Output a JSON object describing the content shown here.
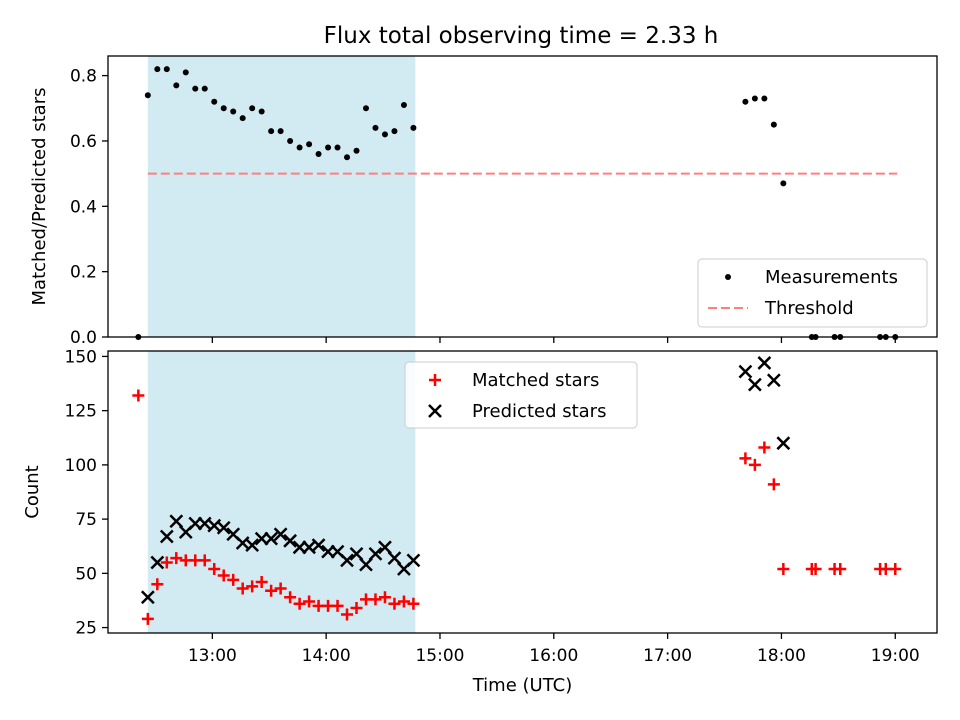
{
  "figure": {
    "title": "Flux total observing time = 2.33 h",
    "highlight_color": "#add8e6"
  },
  "chart_data": [
    {
      "type": "scatter",
      "ylabel": "Matched/Predicted stars",
      "xlim": [
        "12:05",
        "19:22"
      ],
      "ylim": [
        0,
        0.86
      ],
      "yticks": [
        0.0,
        0.2,
        0.4,
        0.6,
        0.8
      ],
      "ytick_labels": [
        "0.0",
        "0.2",
        "0.4",
        "0.6",
        "0.8"
      ],
      "xtick_labels_hidden": true,
      "grid": false,
      "legend": "lower-right",
      "shaded_span": [
        "12:26",
        "14:47"
      ],
      "series": [
        {
          "name": "Measurements",
          "marker": "dot",
          "color": "#000000",
          "points": [
            [
              "12:21",
              0.0
            ],
            [
              "12:26",
              0.74
            ],
            [
              "12:31",
              0.82
            ],
            [
              "12:36",
              0.82
            ],
            [
              "12:41",
              0.77
            ],
            [
              "12:46",
              0.81
            ],
            [
              "12:51",
              0.76
            ],
            [
              "12:56",
              0.76
            ],
            [
              "13:01",
              0.72
            ],
            [
              "13:06",
              0.7
            ],
            [
              "13:11",
              0.69
            ],
            [
              "13:16",
              0.67
            ],
            [
              "13:21",
              0.7
            ],
            [
              "13:26",
              0.69
            ],
            [
              "13:31",
              0.63
            ],
            [
              "13:36",
              0.63
            ],
            [
              "13:41",
              0.6
            ],
            [
              "13:46",
              0.58
            ],
            [
              "13:51",
              0.59
            ],
            [
              "13:56",
              0.56
            ],
            [
              "14:01",
              0.58
            ],
            [
              "14:06",
              0.58
            ],
            [
              "14:11",
              0.55
            ],
            [
              "14:16",
              0.57
            ],
            [
              "14:21",
              0.7
            ],
            [
              "14:26",
              0.64
            ],
            [
              "14:31",
              0.62
            ],
            [
              "14:36",
              0.63
            ],
            [
              "14:41",
              0.71
            ],
            [
              "14:46",
              0.64
            ],
            [
              "17:41",
              0.72
            ],
            [
              "17:46",
              0.73
            ],
            [
              "17:51",
              0.73
            ],
            [
              "17:56",
              0.65
            ],
            [
              "18:01",
              0.47
            ],
            [
              "18:16",
              0.0
            ],
            [
              "18:18",
              0.0
            ],
            [
              "18:28",
              0.0
            ],
            [
              "18:31",
              0.0
            ],
            [
              "18:52",
              0.0
            ],
            [
              "18:55",
              0.0
            ],
            [
              "19:00",
              0.0
            ]
          ]
        },
        {
          "name": "Threshold",
          "marker": "dashed-line",
          "color": "#ff7f7f",
          "points": [
            [
              "12:26",
              0.5
            ],
            [
              "19:01",
              0.5
            ]
          ]
        }
      ]
    },
    {
      "type": "scatter",
      "ylabel": "Count",
      "xlabel": "Time (UTC)",
      "xlim": [
        "12:05",
        "19:22"
      ],
      "ylim": [
        22.5,
        152.5
      ],
      "yticks": [
        25,
        50,
        75,
        100,
        125,
        150
      ],
      "xticks": [
        "13:00",
        "14:00",
        "15:00",
        "16:00",
        "17:00",
        "18:00",
        "19:00"
      ],
      "grid": false,
      "legend": "top-center",
      "shaded_span": [
        "12:26",
        "14:47"
      ],
      "series": [
        {
          "name": "Matched stars",
          "marker": "plus",
          "color": "#ff0000",
          "points": [
            [
              "12:21",
              132
            ],
            [
              "12:26",
              29
            ],
            [
              "12:31",
              45
            ],
            [
              "12:36",
              55
            ],
            [
              "12:41",
              57
            ],
            [
              "12:46",
              56
            ],
            [
              "12:51",
              56
            ],
            [
              "12:56",
              56
            ],
            [
              "13:01",
              52
            ],
            [
              "13:06",
              49
            ],
            [
              "13:11",
              47
            ],
            [
              "13:16",
              43
            ],
            [
              "13:21",
              44
            ],
            [
              "13:26",
              46
            ],
            [
              "13:31",
              42
            ],
            [
              "13:36",
              43
            ],
            [
              "13:41",
              39
            ],
            [
              "13:46",
              36
            ],
            [
              "13:51",
              37
            ],
            [
              "13:56",
              35
            ],
            [
              "14:01",
              35
            ],
            [
              "14:06",
              35
            ],
            [
              "14:11",
              31
            ],
            [
              "14:16",
              34
            ],
            [
              "14:21",
              38
            ],
            [
              "14:26",
              38
            ],
            [
              "14:31",
              39
            ],
            [
              "14:36",
              36
            ],
            [
              "14:41",
              37
            ],
            [
              "14:46",
              36
            ],
            [
              "17:41",
              103
            ],
            [
              "17:46",
              100
            ],
            [
              "17:51",
              108
            ],
            [
              "17:56",
              91
            ],
            [
              "18:01",
              52
            ],
            [
              "18:16",
              52
            ],
            [
              "18:18",
              52
            ],
            [
              "18:28",
              52
            ],
            [
              "18:31",
              52
            ],
            [
              "18:52",
              52
            ],
            [
              "18:55",
              52
            ],
            [
              "19:00",
              52
            ]
          ]
        },
        {
          "name": "Predicted stars",
          "marker": "x",
          "color": "#000000",
          "points": [
            [
              "12:26",
              39
            ],
            [
              "12:31",
              55
            ],
            [
              "12:36",
              67
            ],
            [
              "12:41",
              74
            ],
            [
              "12:46",
              69
            ],
            [
              "12:51",
              73
            ],
            [
              "12:56",
              73
            ],
            [
              "13:01",
              72
            ],
            [
              "13:06",
              71
            ],
            [
              "13:11",
              68
            ],
            [
              "13:16",
              64
            ],
            [
              "13:21",
              63
            ],
            [
              "13:26",
              66
            ],
            [
              "13:31",
              66
            ],
            [
              "13:36",
              68
            ],
            [
              "13:41",
              65
            ],
            [
              "13:46",
              62
            ],
            [
              "13:51",
              62
            ],
            [
              "13:56",
              63
            ],
            [
              "14:01",
              60
            ],
            [
              "14:06",
              60
            ],
            [
              "14:11",
              56
            ],
            [
              "14:16",
              59
            ],
            [
              "14:21",
              54
            ],
            [
              "14:26",
              59
            ],
            [
              "14:31",
              62
            ],
            [
              "14:36",
              57
            ],
            [
              "14:41",
              52
            ],
            [
              "14:46",
              56
            ],
            [
              "17:41",
              143
            ],
            [
              "17:46",
              137
            ],
            [
              "17:51",
              147
            ],
            [
              "17:56",
              139
            ],
            [
              "18:01",
              110
            ]
          ]
        }
      ]
    }
  ]
}
